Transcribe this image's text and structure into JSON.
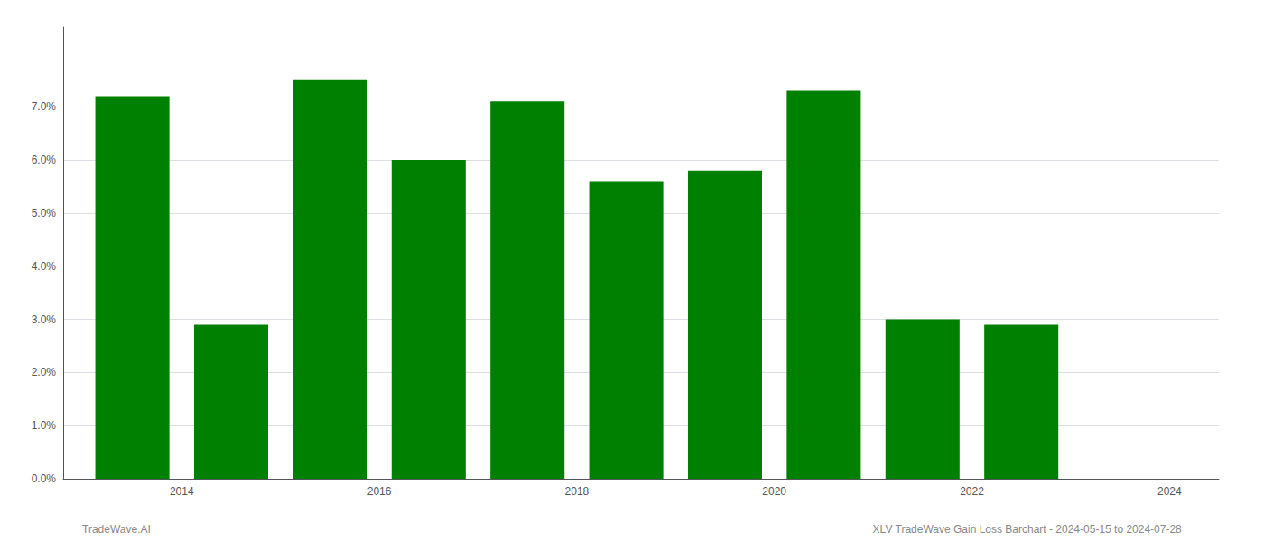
{
  "chart_data": {
    "type": "bar",
    "x": [
      2013.5,
      2014.5,
      2015.5,
      2016.5,
      2017.5,
      2018.5,
      2019.5,
      2020.5,
      2021.5,
      2022.5
    ],
    "values": [
      0.072,
      0.029,
      0.075,
      0.06,
      0.071,
      0.056,
      0.058,
      0.073,
      0.03,
      0.029
    ],
    "color": "#008000",
    "xlim": [
      2012.8,
      2024.5
    ],
    "xticks": [
      2014,
      2016,
      2018,
      2020,
      2022,
      2024
    ],
    "ylim": [
      0,
      0.085
    ],
    "yticks": [
      {
        "value": 0.0,
        "label": "0.0%"
      },
      {
        "value": 0.01,
        "label": "1.0%"
      },
      {
        "value": 0.02,
        "label": "2.0%"
      },
      {
        "value": 0.03,
        "label": "3.0%"
      },
      {
        "value": 0.04,
        "label": "4.0%"
      },
      {
        "value": 0.05,
        "label": "5.0%"
      },
      {
        "value": 0.06,
        "label": "6.0%"
      },
      {
        "value": 0.07,
        "label": "7.0%"
      }
    ],
    "grid": true,
    "annotations": [
      "TradeWave.AI",
      "XLV TradeWave Gain Loss Barchart - 2024-05-15 to 2024-07-28"
    ]
  }
}
